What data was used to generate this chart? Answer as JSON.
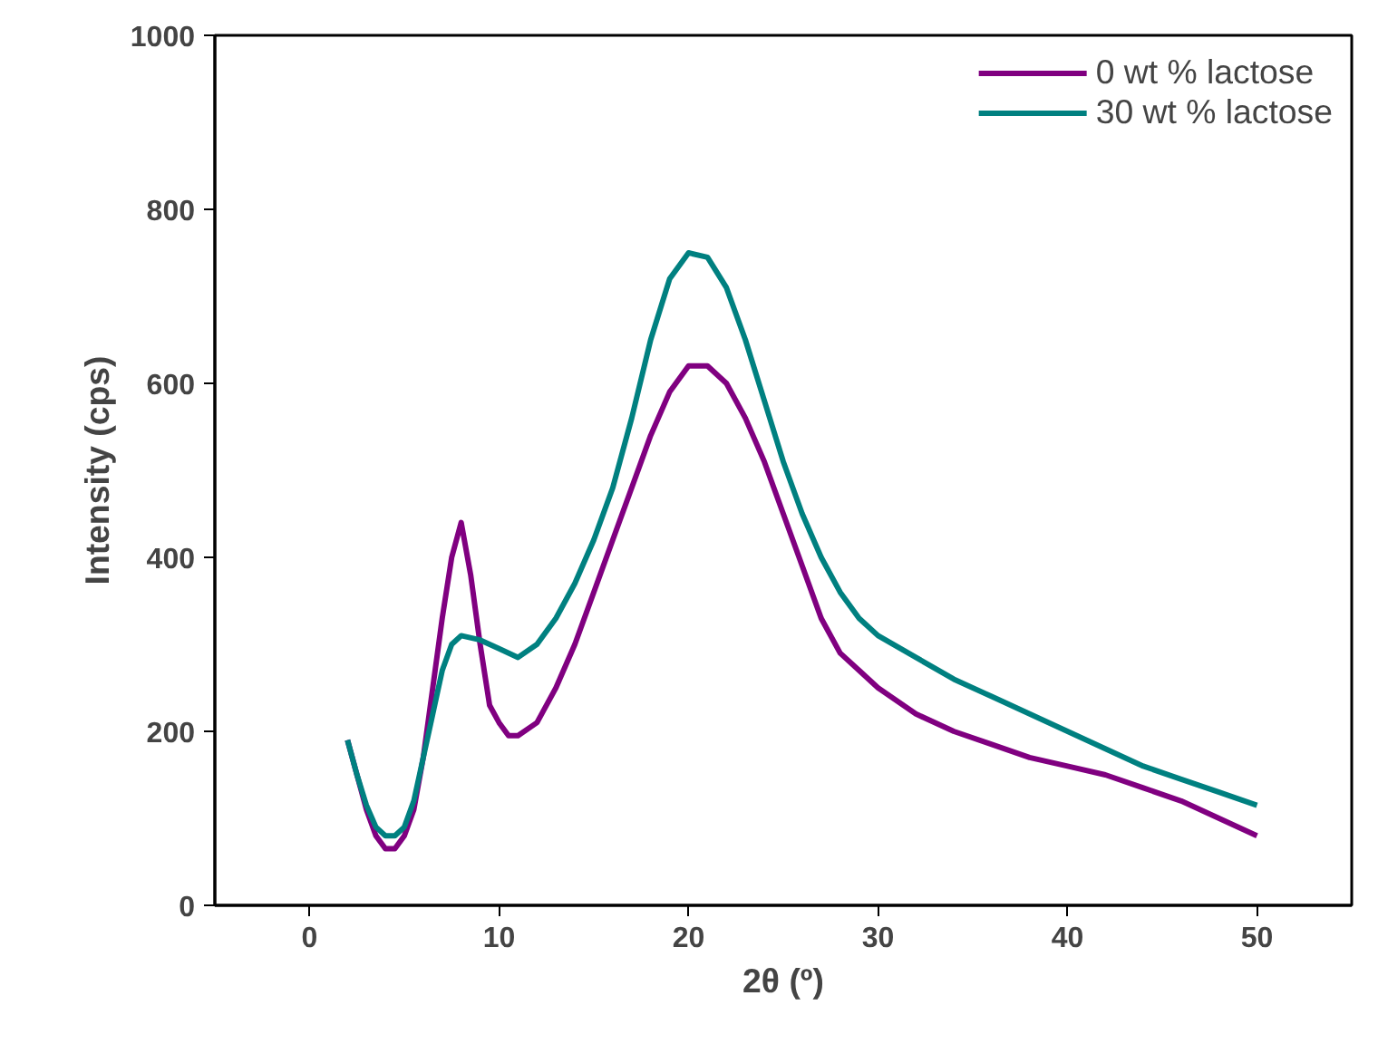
{
  "chart_data": {
    "type": "line",
    "xlabel": "2θ (º)",
    "ylabel": "Intensity (cps)",
    "xlim": [
      -5,
      55
    ],
    "ylim": [
      0,
      1000
    ],
    "xticks": [
      0,
      10,
      20,
      30,
      40,
      50
    ],
    "yticks": [
      0,
      200,
      400,
      600,
      800,
      1000
    ],
    "grid": false,
    "legend": "top right",
    "marker": "none",
    "line_style": "solid",
    "series": [
      {
        "name": "0 wt % lactose",
        "color": "#800080",
        "x": [
          2,
          2.5,
          3,
          3.5,
          4,
          4.5,
          5,
          5.5,
          6,
          6.5,
          7,
          7.5,
          8,
          8.5,
          9,
          9.5,
          10,
          10.5,
          11,
          12,
          13,
          14,
          15,
          16,
          17,
          18,
          19,
          20,
          21,
          22,
          23,
          24,
          25,
          26,
          27,
          28,
          29,
          30,
          32,
          34,
          36,
          38,
          40,
          42,
          44,
          46,
          48,
          50
        ],
        "values": [
          190,
          150,
          110,
          80,
          65,
          65,
          80,
          110,
          170,
          250,
          330,
          400,
          440,
          380,
          300,
          230,
          210,
          195,
          195,
          210,
          250,
          300,
          360,
          420,
          480,
          540,
          590,
          620,
          620,
          600,
          560,
          510,
          450,
          390,
          330,
          290,
          270,
          250,
          220,
          200,
          185,
          170,
          160,
          150,
          135,
          120,
          100,
          80
        ]
      },
      {
        "name": "30 wt % lactose",
        "color": "#008080",
        "x": [
          2,
          2.5,
          3,
          3.5,
          4,
          4.5,
          5,
          5.5,
          6,
          6.5,
          7,
          7.5,
          8,
          9,
          10,
          11,
          12,
          13,
          14,
          15,
          16,
          17,
          18,
          19,
          20,
          21,
          22,
          23,
          24,
          25,
          26,
          27,
          28,
          29,
          30,
          32,
          34,
          36,
          38,
          40,
          42,
          44,
          46,
          48,
          50
        ],
        "values": [
          190,
          150,
          115,
          90,
          80,
          80,
          90,
          120,
          170,
          220,
          270,
          300,
          310,
          305,
          295,
          285,
          300,
          330,
          370,
          420,
          480,
          560,
          650,
          720,
          750,
          745,
          710,
          650,
          580,
          510,
          450,
          400,
          360,
          330,
          310,
          285,
          260,
          240,
          220,
          200,
          180,
          160,
          145,
          130,
          115
        ]
      }
    ]
  }
}
